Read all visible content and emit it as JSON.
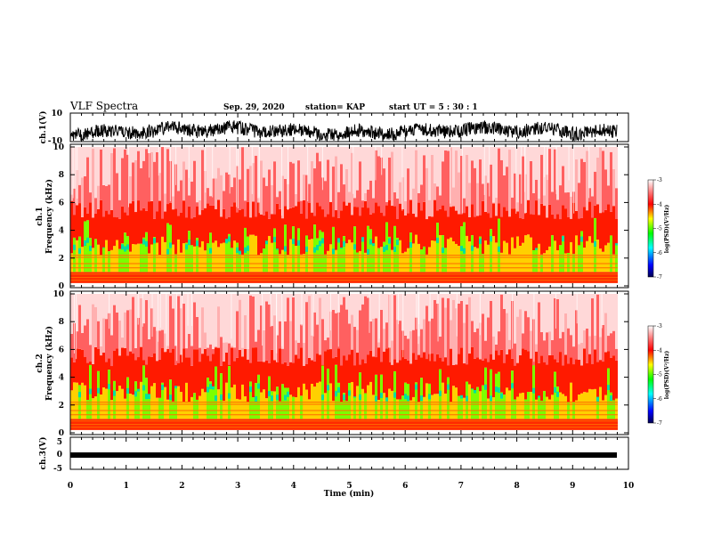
{
  "header": {
    "title": "VLF Spectra",
    "date": "Sep. 29, 2020",
    "station": "station= KAP",
    "start": "start  UT =  5 : 30 : 1"
  },
  "colors": {
    "spectrogram_scale": [
      "#000080",
      "#0000ff",
      "#00ffff",
      "#00ff00",
      "#ffff00",
      "#ff0000",
      "#ffffff"
    ],
    "trace": "#000000"
  },
  "chart_data": [
    {
      "type": "line",
      "name": "ch1-waveform",
      "ylabel": "ch.1(V)",
      "ylim": [
        -10,
        10
      ],
      "yticks": [
        "10",
        "-10"
      ],
      "xlim": [
        0,
        10
      ]
    },
    {
      "type": "heatmap",
      "name": "ch1-spectrogram",
      "ylabel": "ch.1\nFrequency (kHz)",
      "ylabel_lines": [
        "ch.1",
        "Frequency  (kHz)"
      ],
      "ylim": [
        0,
        10
      ],
      "yticks": [
        "0",
        "2",
        "4",
        "6",
        "8",
        "10"
      ],
      "xlim": [
        0,
        9.83
      ],
      "colorbar": {
        "label": "log(PSD)(V²/Hz)",
        "range": [
          -7,
          -3
        ],
        "ticks": [
          "-3",
          "-4",
          "-5",
          "-6",
          "-7"
        ]
      },
      "description_bands_khz": {
        "green_yellow_bg": [
          1,
          3
        ],
        "red_noise": [
          3,
          5.5
        ],
        "white_sparse": [
          5.5,
          10
        ]
      }
    },
    {
      "type": "heatmap",
      "name": "ch2-spectrogram",
      "ylabel_lines": [
        "ch.2",
        "Frequency  (kHz)"
      ],
      "ylim": [
        0,
        10
      ],
      "yticks": [
        "0",
        "2",
        "4",
        "6",
        "8",
        "10"
      ],
      "xlim": [
        0,
        9.83
      ],
      "colorbar": {
        "label": "log(PSD)(V²/Hz)",
        "range": [
          -7,
          -3
        ],
        "ticks": [
          "-3",
          "-4",
          "-5",
          "-6",
          "-7"
        ]
      }
    },
    {
      "type": "line",
      "name": "ch3-waveform",
      "ylabel": "ch.3(V)",
      "ylim": [
        -5,
        5
      ],
      "yticks": [
        "5",
        "0",
        "-5"
      ],
      "xlim": [
        0,
        10
      ]
    }
  ],
  "xaxis": {
    "label": "Time  (min)",
    "ticks": [
      "0",
      "1",
      "2",
      "3",
      "4",
      "5",
      "6",
      "7",
      "8",
      "9",
      "10"
    ],
    "range": [
      0,
      10
    ]
  }
}
